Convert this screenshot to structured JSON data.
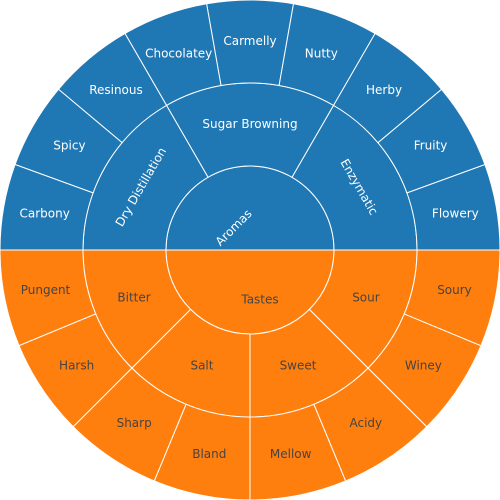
{
  "chart_data": {
    "type": "sunburst",
    "title": "",
    "colors": {
      "Aromas": "#1f77b4",
      "Tastes": "#ff7f0e"
    },
    "text_colors": {
      "Aromas": "#ffffff",
      "Tastes": "#444444"
    },
    "root": [
      {
        "label": "Aromas",
        "value": 12,
        "children": [
          {
            "label": "Enzymatic",
            "value": 3,
            "children": [
              {
                "label": "Flowery",
                "value": 1
              },
              {
                "label": "Fruity",
                "value": 1
              },
              {
                "label": "Herby",
                "value": 1
              }
            ]
          },
          {
            "label": "Sugar Browning",
            "value": 3,
            "children": [
              {
                "label": "Nutty",
                "value": 1
              },
              {
                "label": "Carmelly",
                "value": 1
              },
              {
                "label": "Chocolatey",
                "value": 1
              }
            ]
          },
          {
            "label": "Dry Distillation",
            "value": 3,
            "children": [
              {
                "label": "Resinous",
                "value": 1
              },
              {
                "label": "Spicy",
                "value": 1
              },
              {
                "label": "Carbony",
                "value": 1
              }
            ]
          }
        ]
      },
      {
        "label": "Tastes",
        "value": 12,
        "children": [
          {
            "label": "Bitter",
            "value": 2,
            "children": [
              {
                "label": "Pungent",
                "value": 1
              },
              {
                "label": "Harsh",
                "value": 1
              }
            ]
          },
          {
            "label": "Salt",
            "value": 2,
            "children": [
              {
                "label": "Sharp",
                "value": 1
              },
              {
                "label": "Bland",
                "value": 1
              }
            ]
          },
          {
            "label": "Sweet",
            "value": 2,
            "children": [
              {
                "label": "Mellow",
                "value": 1
              },
              {
                "label": "Acidy",
                "value": 1
              }
            ]
          },
          {
            "label": "Sour",
            "value": 2,
            "children": [
              {
                "label": "Winey",
                "value": 1
              },
              {
                "label": "Soury",
                "value": 1
              }
            ]
          }
        ]
      }
    ]
  }
}
